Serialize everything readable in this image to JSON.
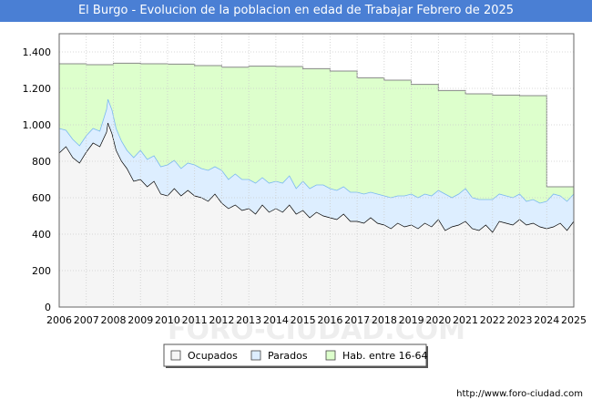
{
  "title": "El Burgo - Evolucion de la poblacion en edad de Trabajar Febrero de 2025",
  "footer_url": "http://www.foro-ciudad.com",
  "watermark": "FORO-CIUDAD.COM",
  "colors": {
    "title_bg": "#4a7fd4",
    "ocupados_fill": "#f5f5f5",
    "parados_fill": "#ddeeff",
    "hab_fill": "#ddffcc",
    "hab_line": "#888888",
    "ocupados_line": "#000000",
    "parados_line": "#7ab8f0"
  },
  "chart_data": {
    "type": "area",
    "title": "El Burgo - Evolucion de la poblacion en edad de Trabajar Febrero de 2025",
    "xlabel": "",
    "ylabel": "",
    "xlim": [
      2006,
      2025
    ],
    "ylim": [
      0,
      1500
    ],
    "grid": true,
    "x_ticks": [
      "2006",
      "2007",
      "2008",
      "2009",
      "2010",
      "2011",
      "2012",
      "2013",
      "2014",
      "2015",
      "2016",
      "2017",
      "2018",
      "2019",
      "2020",
      "2021",
      "2022",
      "2023",
      "2024",
      "2025"
    ],
    "y_ticks": [
      {
        "value": 0,
        "label": "0"
      },
      {
        "value": 200,
        "label": "200"
      },
      {
        "value": 400,
        "label": "400"
      },
      {
        "value": 600,
        "label": "600"
      },
      {
        "value": 800,
        "label": "800"
      },
      {
        "value": 1000,
        "label": "1.000"
      },
      {
        "value": 1200,
        "label": "1.200"
      },
      {
        "value": 1400,
        "label": "1.400"
      }
    ],
    "legend": {
      "placement": "bottom-center",
      "items": [
        "Ocupados",
        "Parados",
        "Hab. entre 16-64"
      ]
    },
    "series": [
      {
        "name": "Hab. entre 16-64",
        "type": "step",
        "x": [
          2006,
          2007,
          2008,
          2009,
          2010,
          2011,
          2012,
          2013,
          2014,
          2015,
          2016,
          2017,
          2018,
          2019,
          2020,
          2021,
          2022,
          2023,
          2024.0
        ],
        "values": [
          1335,
          1330,
          1338,
          1335,
          1333,
          1325,
          1316,
          1322,
          1320,
          1308,
          1295,
          1258,
          1245,
          1222,
          1188,
          1170,
          1163,
          1160,
          660
        ]
      },
      {
        "name": "Ocupados",
        "x": [
          2006.0,
          2006.25,
          2006.5,
          2006.75,
          2007.0,
          2007.25,
          2007.5,
          2007.75,
          2007.8,
          2007.95,
          2008.1,
          2008.3,
          2008.5,
          2008.75,
          2009.0,
          2009.25,
          2009.5,
          2009.75,
          2010.0,
          2010.25,
          2010.5,
          2010.75,
          2011.0,
          2011.25,
          2011.5,
          2011.75,
          2012.0,
          2012.25,
          2012.5,
          2012.75,
          2013.0,
          2013.25,
          2013.5,
          2013.75,
          2014.0,
          2014.25,
          2014.5,
          2014.75,
          2015.0,
          2015.25,
          2015.5,
          2015.75,
          2016.0,
          2016.25,
          2016.5,
          2016.75,
          2017.0,
          2017.25,
          2017.5,
          2017.75,
          2018.0,
          2018.25,
          2018.5,
          2018.75,
          2019.0,
          2019.25,
          2019.5,
          2019.75,
          2020.0,
          2020.25,
          2020.5,
          2020.75,
          2021.0,
          2021.25,
          2021.5,
          2021.75,
          2022.0,
          2022.25,
          2022.5,
          2022.75,
          2023.0,
          2023.25,
          2023.5,
          2023.75,
          2024.0,
          2024.25,
          2024.5,
          2024.75,
          2025.0
        ],
        "values": [
          845,
          880,
          820,
          790,
          850,
          900,
          880,
          960,
          1010,
          950,
          860,
          800,
          760,
          690,
          700,
          660,
          690,
          620,
          610,
          650,
          610,
          640,
          610,
          600,
          580,
          620,
          570,
          540,
          560,
          530,
          540,
          510,
          560,
          520,
          540,
          520,
          560,
          510,
          530,
          490,
          520,
          500,
          490,
          480,
          510,
          470,
          470,
          460,
          490,
          460,
          450,
          430,
          460,
          440,
          450,
          430,
          460,
          440,
          480,
          420,
          440,
          450,
          470,
          430,
          420,
          450,
          410,
          470,
          460,
          450,
          480,
          450,
          460,
          440,
          430,
          440,
          460,
          420,
          470
        ]
      },
      {
        "name": "Parados",
        "x": [
          2006.0,
          2006.25,
          2006.5,
          2006.75,
          2007.0,
          2007.25,
          2007.5,
          2007.75,
          2007.8,
          2007.95,
          2008.1,
          2008.3,
          2008.5,
          2008.75,
          2009.0,
          2009.25,
          2009.5,
          2009.75,
          2010.0,
          2010.25,
          2010.5,
          2010.75,
          2011.0,
          2011.25,
          2011.5,
          2011.75,
          2012.0,
          2012.25,
          2012.5,
          2012.75,
          2013.0,
          2013.25,
          2013.5,
          2013.75,
          2014.0,
          2014.25,
          2014.5,
          2014.75,
          2015.0,
          2015.25,
          2015.5,
          2015.75,
          2016.0,
          2016.25,
          2016.5,
          2016.75,
          2017.0,
          2017.25,
          2017.5,
          2017.75,
          2018.0,
          2018.25,
          2018.5,
          2018.75,
          2019.0,
          2019.25,
          2019.5,
          2019.75,
          2020.0,
          2020.25,
          2020.5,
          2020.75,
          2021.0,
          2021.25,
          2021.5,
          2021.75,
          2022.0,
          2022.25,
          2022.5,
          2022.75,
          2023.0,
          2023.25,
          2023.5,
          2023.75,
          2024.0,
          2024.25,
          2024.5,
          2024.75,
          2025.0
        ],
        "values": [
          135,
          90,
          100,
          95,
          90,
          80,
          85,
          125,
          130,
          130,
          120,
          110,
          100,
          130,
          160,
          150,
          140,
          150,
          170,
          155,
          150,
          150,
          170,
          160,
          170,
          150,
          180,
          160,
          170,
          170,
          160,
          170,
          150,
          160,
          150,
          160,
          160,
          140,
          160,
          160,
          150,
          170,
          160,
          160,
          150,
          160,
          160,
          160,
          140,
          160,
          160,
          170,
          150,
          170,
          170,
          170,
          160,
          170,
          160,
          200,
          160,
          170,
          180,
          170,
          170,
          140,
          180,
          150,
          150,
          150,
          140,
          130,
          130,
          130,
          150,
          180,
          150,
          160,
          150
        ]
      }
    ]
  }
}
